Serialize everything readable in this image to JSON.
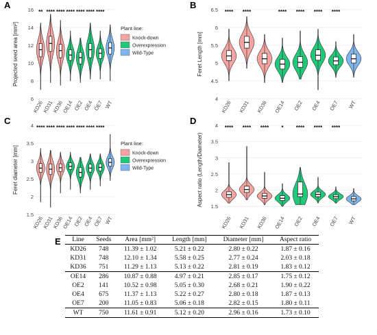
{
  "panel_letters": [
    "A",
    "B",
    "C",
    "D",
    "E"
  ],
  "legend": {
    "title": "Plant line:",
    "items": [
      {
        "label": "Knock-down",
        "color": "#f4a3a0"
      },
      {
        "label": "Overexpression",
        "color": "#22c77a"
      },
      {
        "label": "Wild-Type",
        "color": "#7fb5ee"
      }
    ]
  },
  "colors": {
    "knockdown": "#f4a3a0",
    "overexpression": "#22c77a",
    "wildtype": "#7fb5ee",
    "grid": "#e8e8e8"
  },
  "chart_data": [
    {
      "type": "violin",
      "panel": "A",
      "ylabel": "Projected seed area [mm²]",
      "categories": [
        "KD26",
        "KD31",
        "KD36",
        "OE14",
        "OE2",
        "OE4",
        "OE7",
        "WT"
      ],
      "groups": [
        "Knock-down",
        "Knock-down",
        "Knock-down",
        "Overexpression",
        "Overexpression",
        "Overexpression",
        "Overexpression",
        "Wild-Type"
      ],
      "ylim": [
        6,
        16
      ],
      "yticks": [
        6,
        8,
        10,
        12,
        14,
        16
      ],
      "significance": [
        "**",
        "****",
        "****",
        "****",
        "****",
        "****",
        "****",
        ""
      ],
      "box_stats": [
        {
          "min": 7.0,
          "q1": 10.7,
          "median": 11.5,
          "q3": 12.2,
          "max": 14.5
        },
        {
          "min": 7.8,
          "q1": 11.3,
          "median": 12.2,
          "q3": 13.0,
          "max": 15.5
        },
        {
          "min": 7.5,
          "q1": 10.6,
          "median": 11.4,
          "q3": 12.1,
          "max": 14.8
        },
        {
          "min": 8.0,
          "q1": 10.3,
          "median": 10.9,
          "q3": 11.5,
          "max": 13.6
        },
        {
          "min": 7.8,
          "q1": 9.9,
          "median": 10.6,
          "q3": 11.2,
          "max": 12.8
        },
        {
          "min": 8.2,
          "q1": 10.6,
          "median": 11.5,
          "q3": 12.2,
          "max": 14.5
        },
        {
          "min": 8.2,
          "q1": 10.5,
          "median": 11.1,
          "q3": 11.6,
          "max": 13.6
        },
        {
          "min": 8.0,
          "q1": 11.0,
          "median": 11.7,
          "q3": 12.3,
          "max": 14.3
        }
      ]
    },
    {
      "type": "violin",
      "panel": "B",
      "ylabel": "Feret Length [mm]",
      "categories": [
        "KD26",
        "KD31",
        "KD36",
        "OE14",
        "OE2",
        "OE4",
        "OE7",
        "WT"
      ],
      "groups": [
        "Knock-down",
        "Knock-down",
        "Knock-down",
        "Overexpression",
        "Overexpression",
        "Overexpression",
        "Overexpression",
        "Wild-Type"
      ],
      "ylim": [
        4.0,
        6.5
      ],
      "yticks": [
        4.0,
        4.5,
        5.0,
        5.5,
        6.0,
        6.5
      ],
      "significance": [
        "****",
        "****",
        "",
        "****",
        "****",
        "****",
        "****",
        ""
      ],
      "box_stats": [
        {
          "min": 4.5,
          "q1": 5.07,
          "median": 5.2,
          "q3": 5.35,
          "max": 5.95
        },
        {
          "min": 4.85,
          "q1": 5.42,
          "median": 5.58,
          "q3": 5.75,
          "max": 6.3
        },
        {
          "min": 4.45,
          "q1": 4.98,
          "median": 5.12,
          "q3": 5.27,
          "max": 5.8
        },
        {
          "min": 4.45,
          "q1": 4.83,
          "median": 4.97,
          "q3": 5.1,
          "max": 5.7
        },
        {
          "min": 4.55,
          "q1": 4.88,
          "median": 5.02,
          "q3": 5.18,
          "max": 5.9
        },
        {
          "min": 4.25,
          "q1": 5.08,
          "median": 5.22,
          "q3": 5.37,
          "max": 5.95
        },
        {
          "min": 4.6,
          "q1": 4.95,
          "median": 5.06,
          "q3": 5.17,
          "max": 5.6
        },
        {
          "min": 4.6,
          "q1": 5.0,
          "median": 5.12,
          "q3": 5.25,
          "max": 5.8
        }
      ]
    },
    {
      "type": "violin",
      "panel": "C",
      "ylabel": "Feret diameter [mm]",
      "categories": [
        "KD26",
        "KD31",
        "KD36",
        "OE14",
        "OE2",
        "OE4",
        "OE7",
        "WT"
      ],
      "groups": [
        "Knock-down",
        "Knock-down",
        "Knock-down",
        "Overexpression",
        "Overexpression",
        "Overexpression",
        "Overexpression",
        "Wild-Type"
      ],
      "ylim": [
        1.5,
        4.0
      ],
      "yticks": [
        1.5,
        2.0,
        2.5,
        3.0,
        3.5,
        4.0
      ],
      "significance": [
        "****",
        "****",
        "****",
        "****",
        "****",
        "****",
        "****",
        ""
      ],
      "box_stats": [
        {
          "min": 1.85,
          "q1": 2.68,
          "median": 2.8,
          "q3": 2.93,
          "max": 3.35
        },
        {
          "min": 1.7,
          "q1": 2.62,
          "median": 2.77,
          "q3": 2.92,
          "max": 3.3
        },
        {
          "min": 2.1,
          "q1": 2.7,
          "median": 2.81,
          "q3": 2.92,
          "max": 3.25
        },
        {
          "min": 2.2,
          "q1": 2.76,
          "median": 2.85,
          "q3": 2.95,
          "max": 3.25
        },
        {
          "min": 2.1,
          "q1": 2.55,
          "median": 2.68,
          "q3": 2.82,
          "max": 3.1
        },
        {
          "min": 2.2,
          "q1": 2.69,
          "median": 2.8,
          "q3": 2.91,
          "max": 3.2
        },
        {
          "min": 2.3,
          "q1": 2.72,
          "median": 2.82,
          "q3": 2.92,
          "max": 3.2
        },
        {
          "min": 2.45,
          "q1": 2.85,
          "median": 2.96,
          "q3": 3.07,
          "max": 3.75
        }
      ]
    },
    {
      "type": "violin",
      "panel": "D",
      "ylabel": "Aspect ratio (Length/Diameter)",
      "categories": [
        "KD26",
        "KD31",
        "KD36",
        "OE14",
        "OE2",
        "OE4",
        "OE7",
        "WT"
      ],
      "groups": [
        "Knock-down",
        "Knock-down",
        "Knock-down",
        "Overexpression",
        "Overexpression",
        "Overexpression",
        "Overexpression",
        "Wild-Type"
      ],
      "ylim": [
        1.25,
        4.0
      ],
      "yticks": [
        1.5,
        2.0,
        2.5,
        3.0,
        3.5,
        4.0
      ],
      "significance": [
        "****",
        "****",
        "****",
        "*",
        "****",
        "****",
        "****",
        ""
      ],
      "box_stats": [
        {
          "min": 1.6,
          "q1": 1.78,
          "median": 1.86,
          "q3": 1.95,
          "max": 2.85
        },
        {
          "min": 1.7,
          "q1": 1.93,
          "median": 2.02,
          "q3": 2.12,
          "max": 3.35
        },
        {
          "min": 1.55,
          "q1": 1.75,
          "median": 1.82,
          "q3": 1.9,
          "max": 2.55
        },
        {
          "min": 1.5,
          "q1": 1.68,
          "median": 1.75,
          "q3": 1.83,
          "max": 2.2
        },
        {
          "min": 1.55,
          "q1": 1.8,
          "median": 1.88,
          "q3": 2.25,
          "max": 2.7
        },
        {
          "min": 1.6,
          "q1": 1.8,
          "median": 1.87,
          "q3": 1.94,
          "max": 2.4
        },
        {
          "min": 1.6,
          "q1": 1.74,
          "median": 1.8,
          "q3": 1.86,
          "max": 2.1
        },
        {
          "min": 1.55,
          "q1": 1.67,
          "median": 1.73,
          "q3": 1.8,
          "max": 2.05
        }
      ]
    }
  ],
  "table": {
    "headers": [
      "Line",
      "Seeds",
      "Area [mm²]",
      "Length [mm]",
      "Diameter [mm]",
      "Aspect ratio"
    ],
    "rows": [
      [
        "KD26",
        "748",
        "11.39 ± 1.02",
        "5.21 ± 0.22",
        "2.80 ± 0.22",
        "1.87 ± 0.16"
      ],
      [
        "KD31",
        "748",
        "12.10 ± 1.34",
        "5.58 ± 0.25",
        "2.77 ± 0.24",
        "2.03 ± 0.18"
      ],
      [
        "KD36",
        "751",
        "11.29 ± 1.13",
        "5.13 ± 0.22",
        "2.81 ± 0.19",
        "1.83 ± 0.12"
      ],
      [
        "OE14",
        "286",
        "10.87 ± 0.88",
        "4.97 ± 0.21",
        "2.85 ± 0.17",
        "1.75 ± 0.12"
      ],
      [
        "OE2",
        "141",
        "10.52 ± 0.98",
        "5.05 ± 0.30",
        "2.68 ± 0.21",
        "1.90 ± 0.22"
      ],
      [
        "OE4",
        "675",
        "11.37 ± 1.13",
        "5.22 ± 0.27",
        "2.80 ± 0.18",
        "1.87 ± 0.13"
      ],
      [
        "OE7",
        "200",
        "11.05 ± 0.83",
        "5.06 ± 0.18",
        "2.82 ± 0.15",
        "1.80 ± 0.11"
      ],
      [
        "WT",
        "750",
        "11.61 ± 0.91",
        "5.12 ± 0.20",
        "2.96 ± 0.16",
        "1.73 ± 0.10"
      ]
    ]
  }
}
